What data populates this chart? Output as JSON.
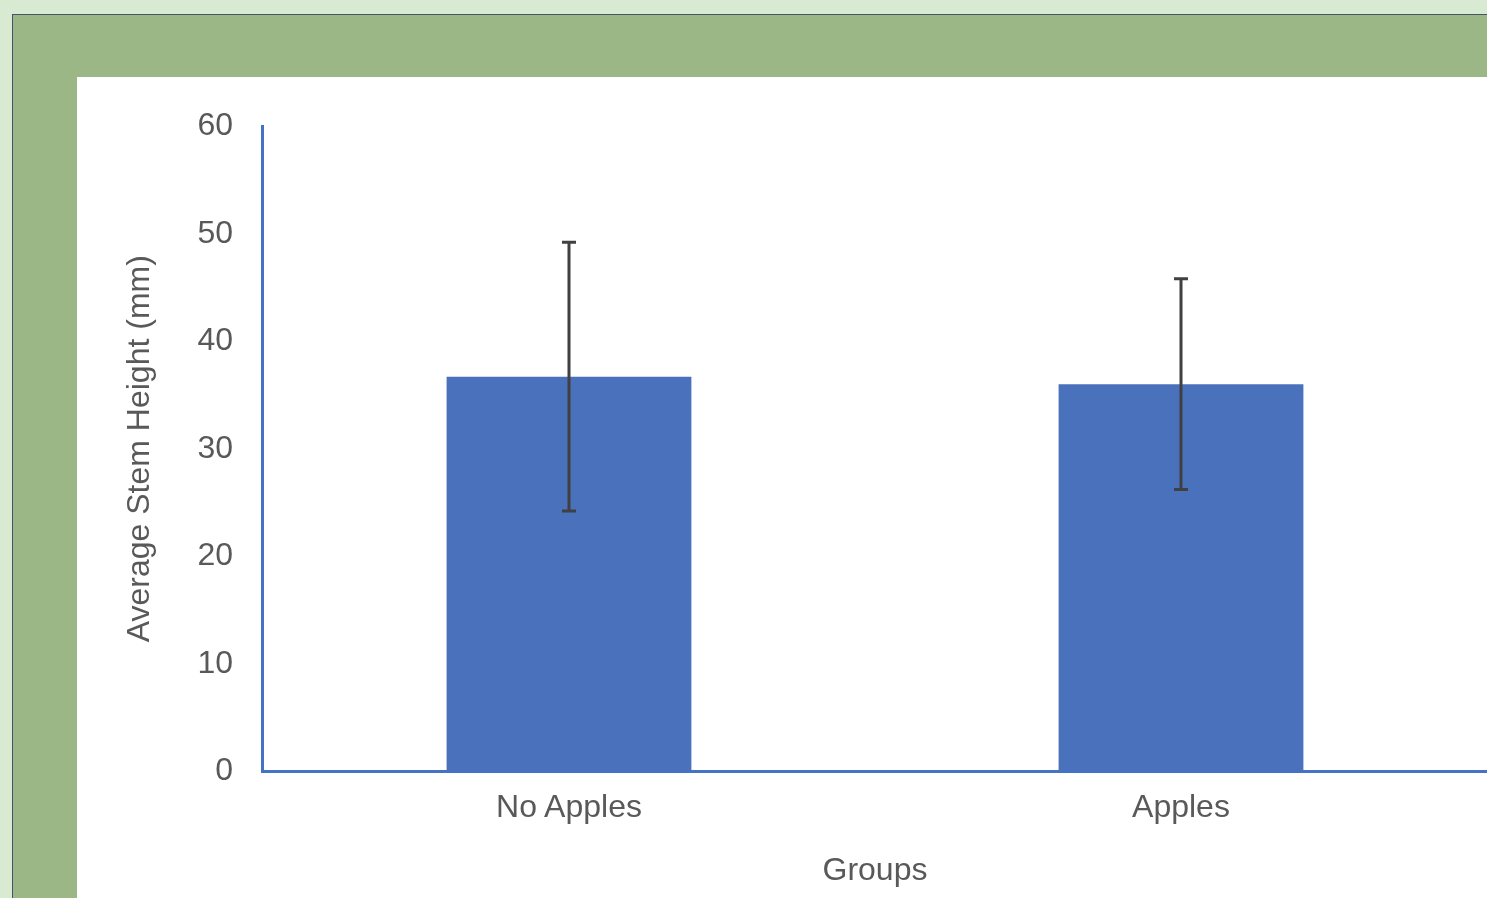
{
  "chart_data": {
    "type": "bar",
    "xlabel": "Groups",
    "ylabel": "Average Stem Height (mm)",
    "categories": [
      "No Apples",
      "Apples"
    ],
    "values": [
      36.7,
      36.0
    ],
    "errors": [
      12.5,
      9.8
    ],
    "color": "#4a71bc",
    "ylim": [
      0,
      60
    ],
    "yticks": [
      0,
      10,
      20,
      30,
      40,
      50,
      60
    ],
    "grid": false,
    "legend": false
  }
}
